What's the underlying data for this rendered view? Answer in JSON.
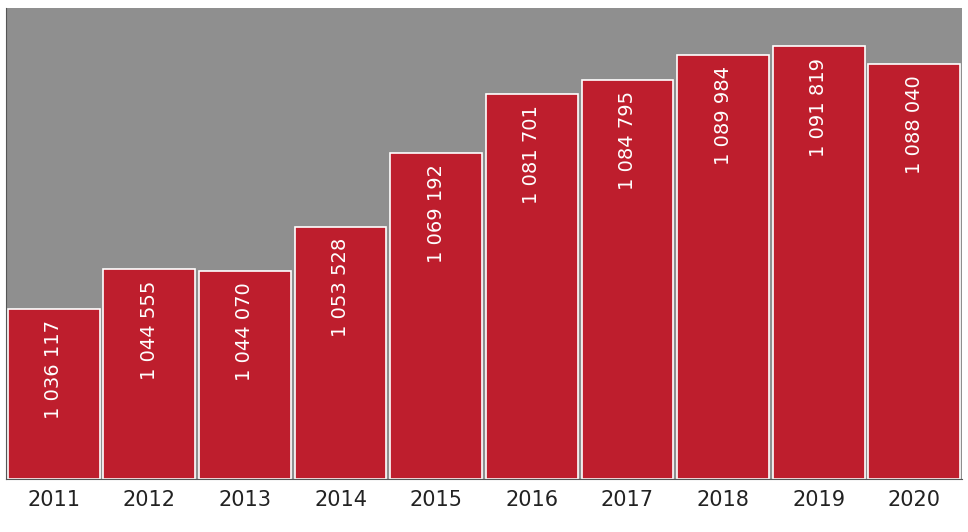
{
  "chart_data": {
    "type": "bar",
    "categories": [
      "2011",
      "2012",
      "2013",
      "2014",
      "2015",
      "2016",
      "2017",
      "2018",
      "2019",
      "2020"
    ],
    "values": [
      1036117,
      1044555,
      1044070,
      1053528,
      1069192,
      1081701,
      1084795,
      1089984,
      1091819,
      1088040
    ],
    "value_labels": [
      "1 036 117",
      "1 044 555",
      "1 044 070",
      "1 053 528",
      "1 069 192",
      "1 081 701",
      "1 084 795",
      "1 089 984",
      "1 091 819",
      "1 088 040"
    ],
    "data_labels": true,
    "color": "#be1e2d",
    "ylim": [
      1000000,
      1100000
    ],
    "tick_labels": "x",
    "grid": false
  }
}
